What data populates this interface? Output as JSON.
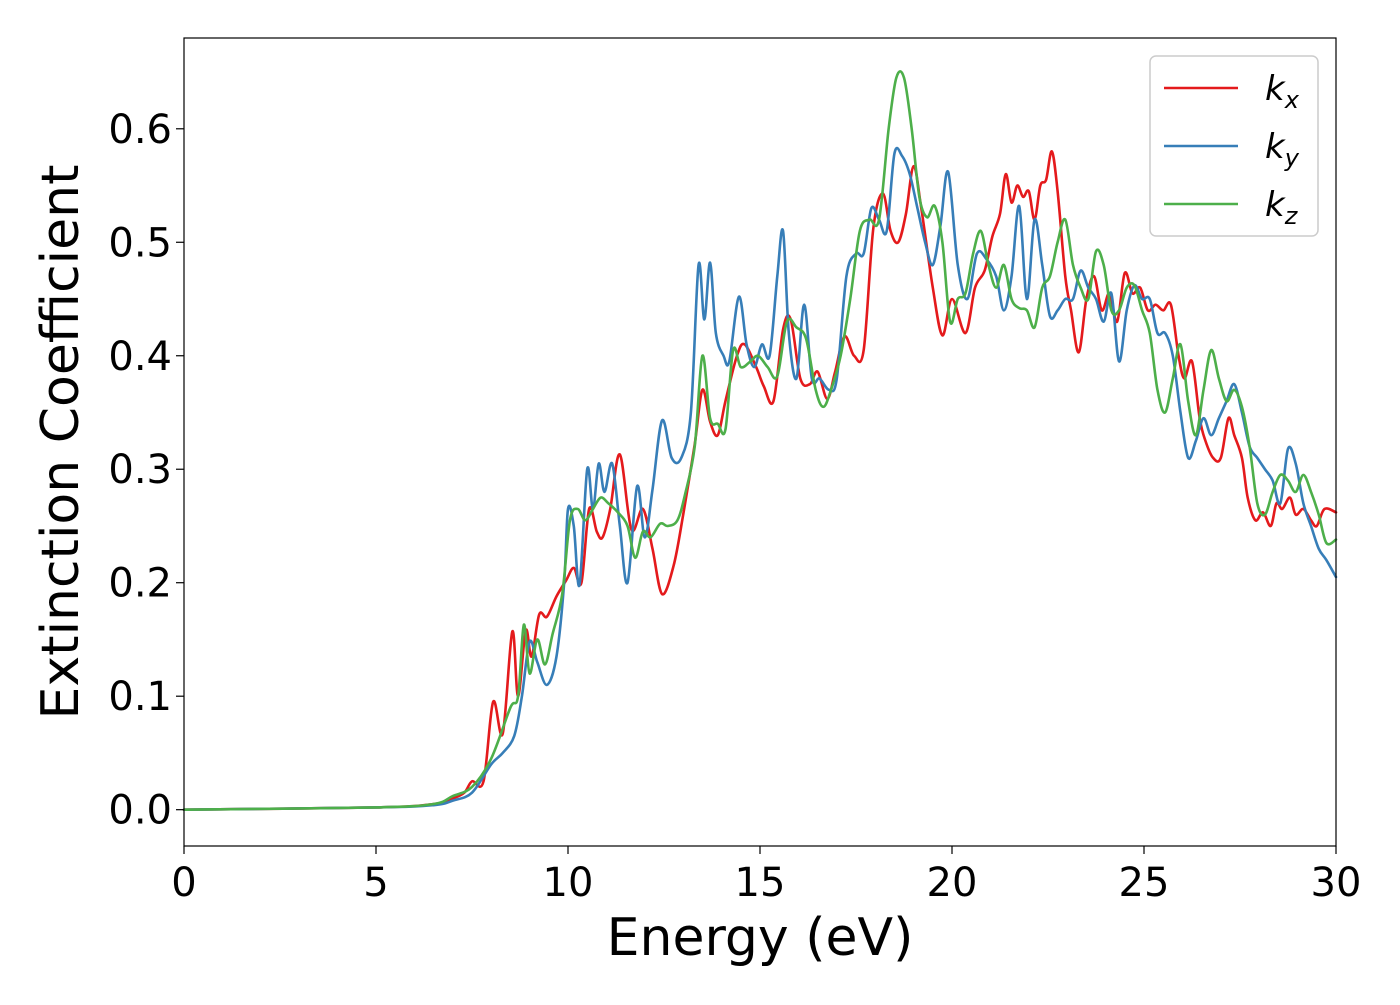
{
  "chart_data": {
    "type": "line",
    "title": "",
    "xlabel": "Energy (eV)",
    "ylabel": "Extinction Coefficient",
    "xlim": [
      0,
      30
    ],
    "ylim": [
      -0.032,
      0.68
    ],
    "xticks": [
      0,
      5,
      10,
      15,
      20,
      25,
      30
    ],
    "yticks": [
      0.0,
      0.1,
      0.2,
      0.3,
      0.4,
      0.5,
      0.6
    ],
    "xtick_labels": [
      "0",
      "5",
      "10",
      "15",
      "20",
      "25",
      "30"
    ],
    "ytick_labels": [
      "0.0",
      "0.1",
      "0.2",
      "0.3",
      "0.4",
      "0.5",
      "0.6"
    ],
    "grid": false,
    "legend_position": "top-right",
    "series": [
      {
        "name": "k_x",
        "legend_main": "k",
        "legend_sub": "x",
        "color": "#e41a1c",
        "x": [
          0,
          5,
          6.5,
          7.0,
          7.3,
          7.5,
          7.8,
          8.05,
          8.3,
          8.55,
          8.7,
          8.9,
          9.05,
          9.25,
          9.45,
          9.7,
          9.95,
          10.15,
          10.35,
          10.55,
          10.75,
          10.9,
          11.1,
          11.35,
          11.65,
          11.95,
          12.2,
          12.45,
          12.75,
          13.0,
          13.3,
          13.5,
          13.7,
          13.9,
          14.1,
          14.4,
          14.6,
          14.9,
          15.1,
          15.35,
          15.6,
          15.8,
          16.05,
          16.3,
          16.5,
          16.75,
          16.95,
          17.2,
          17.45,
          17.7,
          17.95,
          18.2,
          18.4,
          18.6,
          18.8,
          19.0,
          19.2,
          19.5,
          19.75,
          20.0,
          20.35,
          20.6,
          20.85,
          21.05,
          21.25,
          21.4,
          21.55,
          21.7,
          21.85,
          22.0,
          22.15,
          22.3,
          22.45,
          22.6,
          22.75,
          22.95,
          23.1,
          23.3,
          23.5,
          23.7,
          23.9,
          24.1,
          24.3,
          24.5,
          24.7,
          24.9,
          25.1,
          25.3,
          25.5,
          25.7,
          25.9,
          26.05,
          26.25,
          26.45,
          26.6,
          26.8,
          27.0,
          27.2,
          27.35,
          27.55,
          27.7,
          27.9,
          28.1,
          28.3,
          28.45,
          28.6,
          28.8,
          28.95,
          29.15,
          29.35,
          29.5,
          29.7,
          30.0
        ],
        "y": [
          0.0,
          0.002,
          0.005,
          0.01,
          0.015,
          0.025,
          0.025,
          0.095,
          0.067,
          0.157,
          0.1,
          0.158,
          0.135,
          0.172,
          0.17,
          0.188,
          0.202,
          0.213,
          0.2,
          0.265,
          0.245,
          0.24,
          0.265,
          0.313,
          0.247,
          0.265,
          0.23,
          0.19,
          0.215,
          0.26,
          0.322,
          0.37,
          0.342,
          0.33,
          0.36,
          0.4,
          0.41,
          0.39,
          0.373,
          0.36,
          0.423,
          0.432,
          0.38,
          0.375,
          0.386,
          0.362,
          0.385,
          0.417,
          0.4,
          0.405,
          0.512,
          0.543,
          0.51,
          0.5,
          0.525,
          0.567,
          0.53,
          0.46,
          0.418,
          0.45,
          0.42,
          0.46,
          0.475,
          0.505,
          0.525,
          0.56,
          0.535,
          0.55,
          0.54,
          0.545,
          0.52,
          0.55,
          0.555,
          0.58,
          0.545,
          0.47,
          0.44,
          0.403,
          0.45,
          0.47,
          0.44,
          0.455,
          0.43,
          0.473,
          0.455,
          0.46,
          0.44,
          0.445,
          0.44,
          0.445,
          0.4,
          0.38,
          0.395,
          0.345,
          0.325,
          0.31,
          0.31,
          0.345,
          0.33,
          0.31,
          0.275,
          0.255,
          0.262,
          0.25,
          0.27,
          0.265,
          0.275,
          0.26,
          0.265,
          0.255,
          0.25,
          0.265,
          0.262
        ]
      },
      {
        "name": "k_y",
        "legend_main": "k",
        "legend_sub": "y",
        "color": "#377eb8",
        "x": [
          0,
          5,
          6.5,
          7.0,
          7.5,
          8.0,
          8.3,
          8.6,
          8.8,
          9.0,
          9.2,
          9.45,
          9.7,
          9.9,
          10.0,
          10.15,
          10.3,
          10.5,
          10.65,
          10.8,
          10.95,
          11.15,
          11.35,
          11.55,
          11.8,
          12.0,
          12.2,
          12.45,
          12.7,
          12.95,
          13.2,
          13.4,
          13.55,
          13.7,
          13.85,
          14.05,
          14.2,
          14.45,
          14.65,
          14.85,
          15.05,
          15.25,
          15.45,
          15.6,
          15.75,
          15.95,
          16.15,
          16.35,
          16.55,
          16.8,
          17.0,
          17.25,
          17.5,
          17.7,
          17.9,
          18.1,
          18.3,
          18.5,
          18.7,
          18.9,
          19.1,
          19.3,
          19.5,
          19.7,
          19.9,
          20.15,
          20.4,
          20.65,
          20.9,
          21.15,
          21.35,
          21.55,
          21.75,
          21.95,
          22.15,
          22.35,
          22.55,
          22.75,
          22.95,
          23.15,
          23.35,
          23.55,
          23.75,
          23.95,
          24.15,
          24.35,
          24.55,
          24.75,
          24.95,
          25.15,
          25.35,
          25.55,
          25.75,
          25.95,
          26.15,
          26.35,
          26.55,
          26.75,
          26.95,
          27.15,
          27.35,
          27.55,
          27.75,
          27.95,
          28.15,
          28.35,
          28.55,
          28.75,
          28.95,
          29.15,
          29.35,
          29.55,
          29.75,
          30.0
        ],
        "y": [
          0.0,
          0.002,
          0.004,
          0.008,
          0.015,
          0.04,
          0.05,
          0.065,
          0.1,
          0.148,
          0.13,
          0.11,
          0.135,
          0.2,
          0.265,
          0.25,
          0.198,
          0.3,
          0.265,
          0.305,
          0.28,
          0.305,
          0.25,
          0.2,
          0.285,
          0.24,
          0.282,
          0.343,
          0.31,
          0.31,
          0.35,
          0.48,
          0.432,
          0.482,
          0.42,
          0.4,
          0.395,
          0.452,
          0.41,
          0.39,
          0.41,
          0.4,
          0.47,
          0.51,
          0.42,
          0.38,
          0.445,
          0.38,
          0.38,
          0.37,
          0.38,
          0.47,
          0.49,
          0.49,
          0.53,
          0.52,
          0.51,
          0.578,
          0.576,
          0.56,
          0.53,
          0.5,
          0.48,
          0.515,
          0.562,
          0.48,
          0.45,
          0.49,
          0.485,
          0.47,
          0.44,
          0.47,
          0.532,
          0.45,
          0.52,
          0.48,
          0.435,
          0.44,
          0.45,
          0.45,
          0.475,
          0.46,
          0.45,
          0.43,
          0.455,
          0.395,
          0.44,
          0.462,
          0.45,
          0.45,
          0.42,
          0.42,
          0.4,
          0.35,
          0.31,
          0.325,
          0.345,
          0.33,
          0.345,
          0.36,
          0.375,
          0.35,
          0.32,
          0.31,
          0.3,
          0.29,
          0.27,
          0.318,
          0.305,
          0.27,
          0.25,
          0.23,
          0.22,
          0.205
        ]
      },
      {
        "name": "k_z",
        "legend_main": "k",
        "legend_sub": "z",
        "color": "#4daf4a",
        "x": [
          0,
          5,
          6.5,
          7.0,
          7.5,
          8.0,
          8.5,
          8.7,
          8.85,
          9.0,
          9.2,
          9.4,
          9.6,
          9.85,
          10.05,
          10.25,
          10.45,
          10.65,
          10.85,
          11.05,
          11.3,
          11.55,
          11.75,
          11.95,
          12.15,
          12.4,
          12.6,
          12.85,
          13.05,
          13.3,
          13.5,
          13.7,
          13.9,
          14.1,
          14.3,
          14.5,
          14.75,
          14.95,
          15.2,
          15.45,
          15.7,
          15.95,
          16.2,
          16.45,
          16.65,
          16.85,
          17.1,
          17.35,
          17.6,
          17.85,
          18.1,
          18.35,
          18.55,
          18.75,
          18.95,
          19.15,
          19.35,
          19.55,
          19.75,
          19.95,
          20.15,
          20.35,
          20.55,
          20.75,
          20.95,
          21.15,
          21.35,
          21.55,
          21.75,
          21.95,
          22.15,
          22.35,
          22.55,
          22.75,
          22.95,
          23.15,
          23.35,
          23.55,
          23.75,
          23.95,
          24.15,
          24.35,
          24.55,
          24.75,
          24.95,
          25.15,
          25.35,
          25.55,
          25.75,
          25.95,
          26.15,
          26.35,
          26.55,
          26.75,
          26.95,
          27.15,
          27.35,
          27.55,
          27.75,
          27.95,
          28.15,
          28.35,
          28.55,
          28.75,
          28.95,
          29.15,
          29.35,
          29.55,
          29.75,
          30.0
        ],
        "y": [
          0.0,
          0.002,
          0.005,
          0.012,
          0.02,
          0.045,
          0.09,
          0.1,
          0.163,
          0.12,
          0.15,
          0.128,
          0.155,
          0.19,
          0.255,
          0.265,
          0.255,
          0.265,
          0.275,
          0.27,
          0.262,
          0.25,
          0.222,
          0.245,
          0.24,
          0.252,
          0.25,
          0.255,
          0.278,
          0.32,
          0.4,
          0.345,
          0.34,
          0.335,
          0.405,
          0.39,
          0.395,
          0.4,
          0.39,
          0.382,
          0.43,
          0.425,
          0.415,
          0.37,
          0.355,
          0.37,
          0.4,
          0.45,
          0.51,
          0.52,
          0.52,
          0.6,
          0.645,
          0.645,
          0.6,
          0.54,
          0.522,
          0.532,
          0.5,
          0.43,
          0.45,
          0.455,
          0.49,
          0.51,
          0.48,
          0.46,
          0.48,
          0.45,
          0.442,
          0.44,
          0.425,
          0.46,
          0.47,
          0.5,
          0.52,
          0.48,
          0.46,
          0.45,
          0.492,
          0.48,
          0.44,
          0.44,
          0.46,
          0.462,
          0.44,
          0.42,
          0.37,
          0.35,
          0.38,
          0.41,
          0.36,
          0.33,
          0.37,
          0.405,
          0.38,
          0.36,
          0.37,
          0.355,
          0.32,
          0.27,
          0.26,
          0.28,
          0.295,
          0.29,
          0.28,
          0.295,
          0.28,
          0.26,
          0.235,
          0.238
        ]
      }
    ]
  }
}
